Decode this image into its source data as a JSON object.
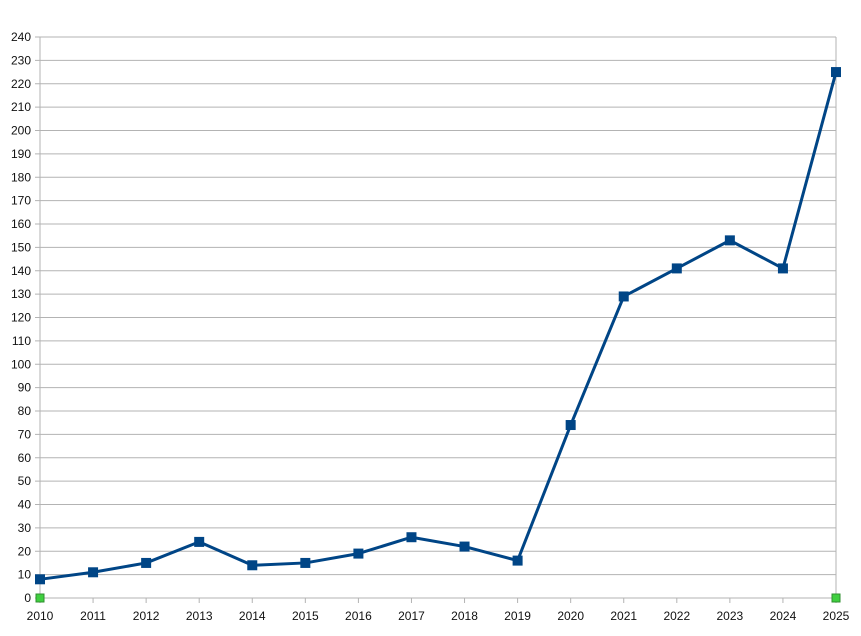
{
  "chart_data": {
    "type": "line",
    "title": "",
    "xlabel": "",
    "ylabel": "",
    "categories": [
      "2010",
      "2011",
      "2012",
      "2013",
      "2014",
      "2015",
      "2016",
      "2017",
      "2018",
      "2019",
      "2020",
      "2021",
      "2022",
      "2023",
      "2024",
      "2025"
    ],
    "series": [
      {
        "values": [
          8,
          11,
          15,
          24,
          14,
          15,
          19,
          26,
          22,
          16,
          74,
          129,
          141,
          153,
          141,
          225
        ],
        "color": "#004586",
        "marker": "square"
      }
    ],
    "ylim": [
      0,
      240
    ],
    "ytick_step": 10,
    "grid": true,
    "legend": "none",
    "colors": {
      "gridline": "#b3b3b3",
      "series": "#004586",
      "endpoint_markers": "#3fcf3f"
    }
  }
}
